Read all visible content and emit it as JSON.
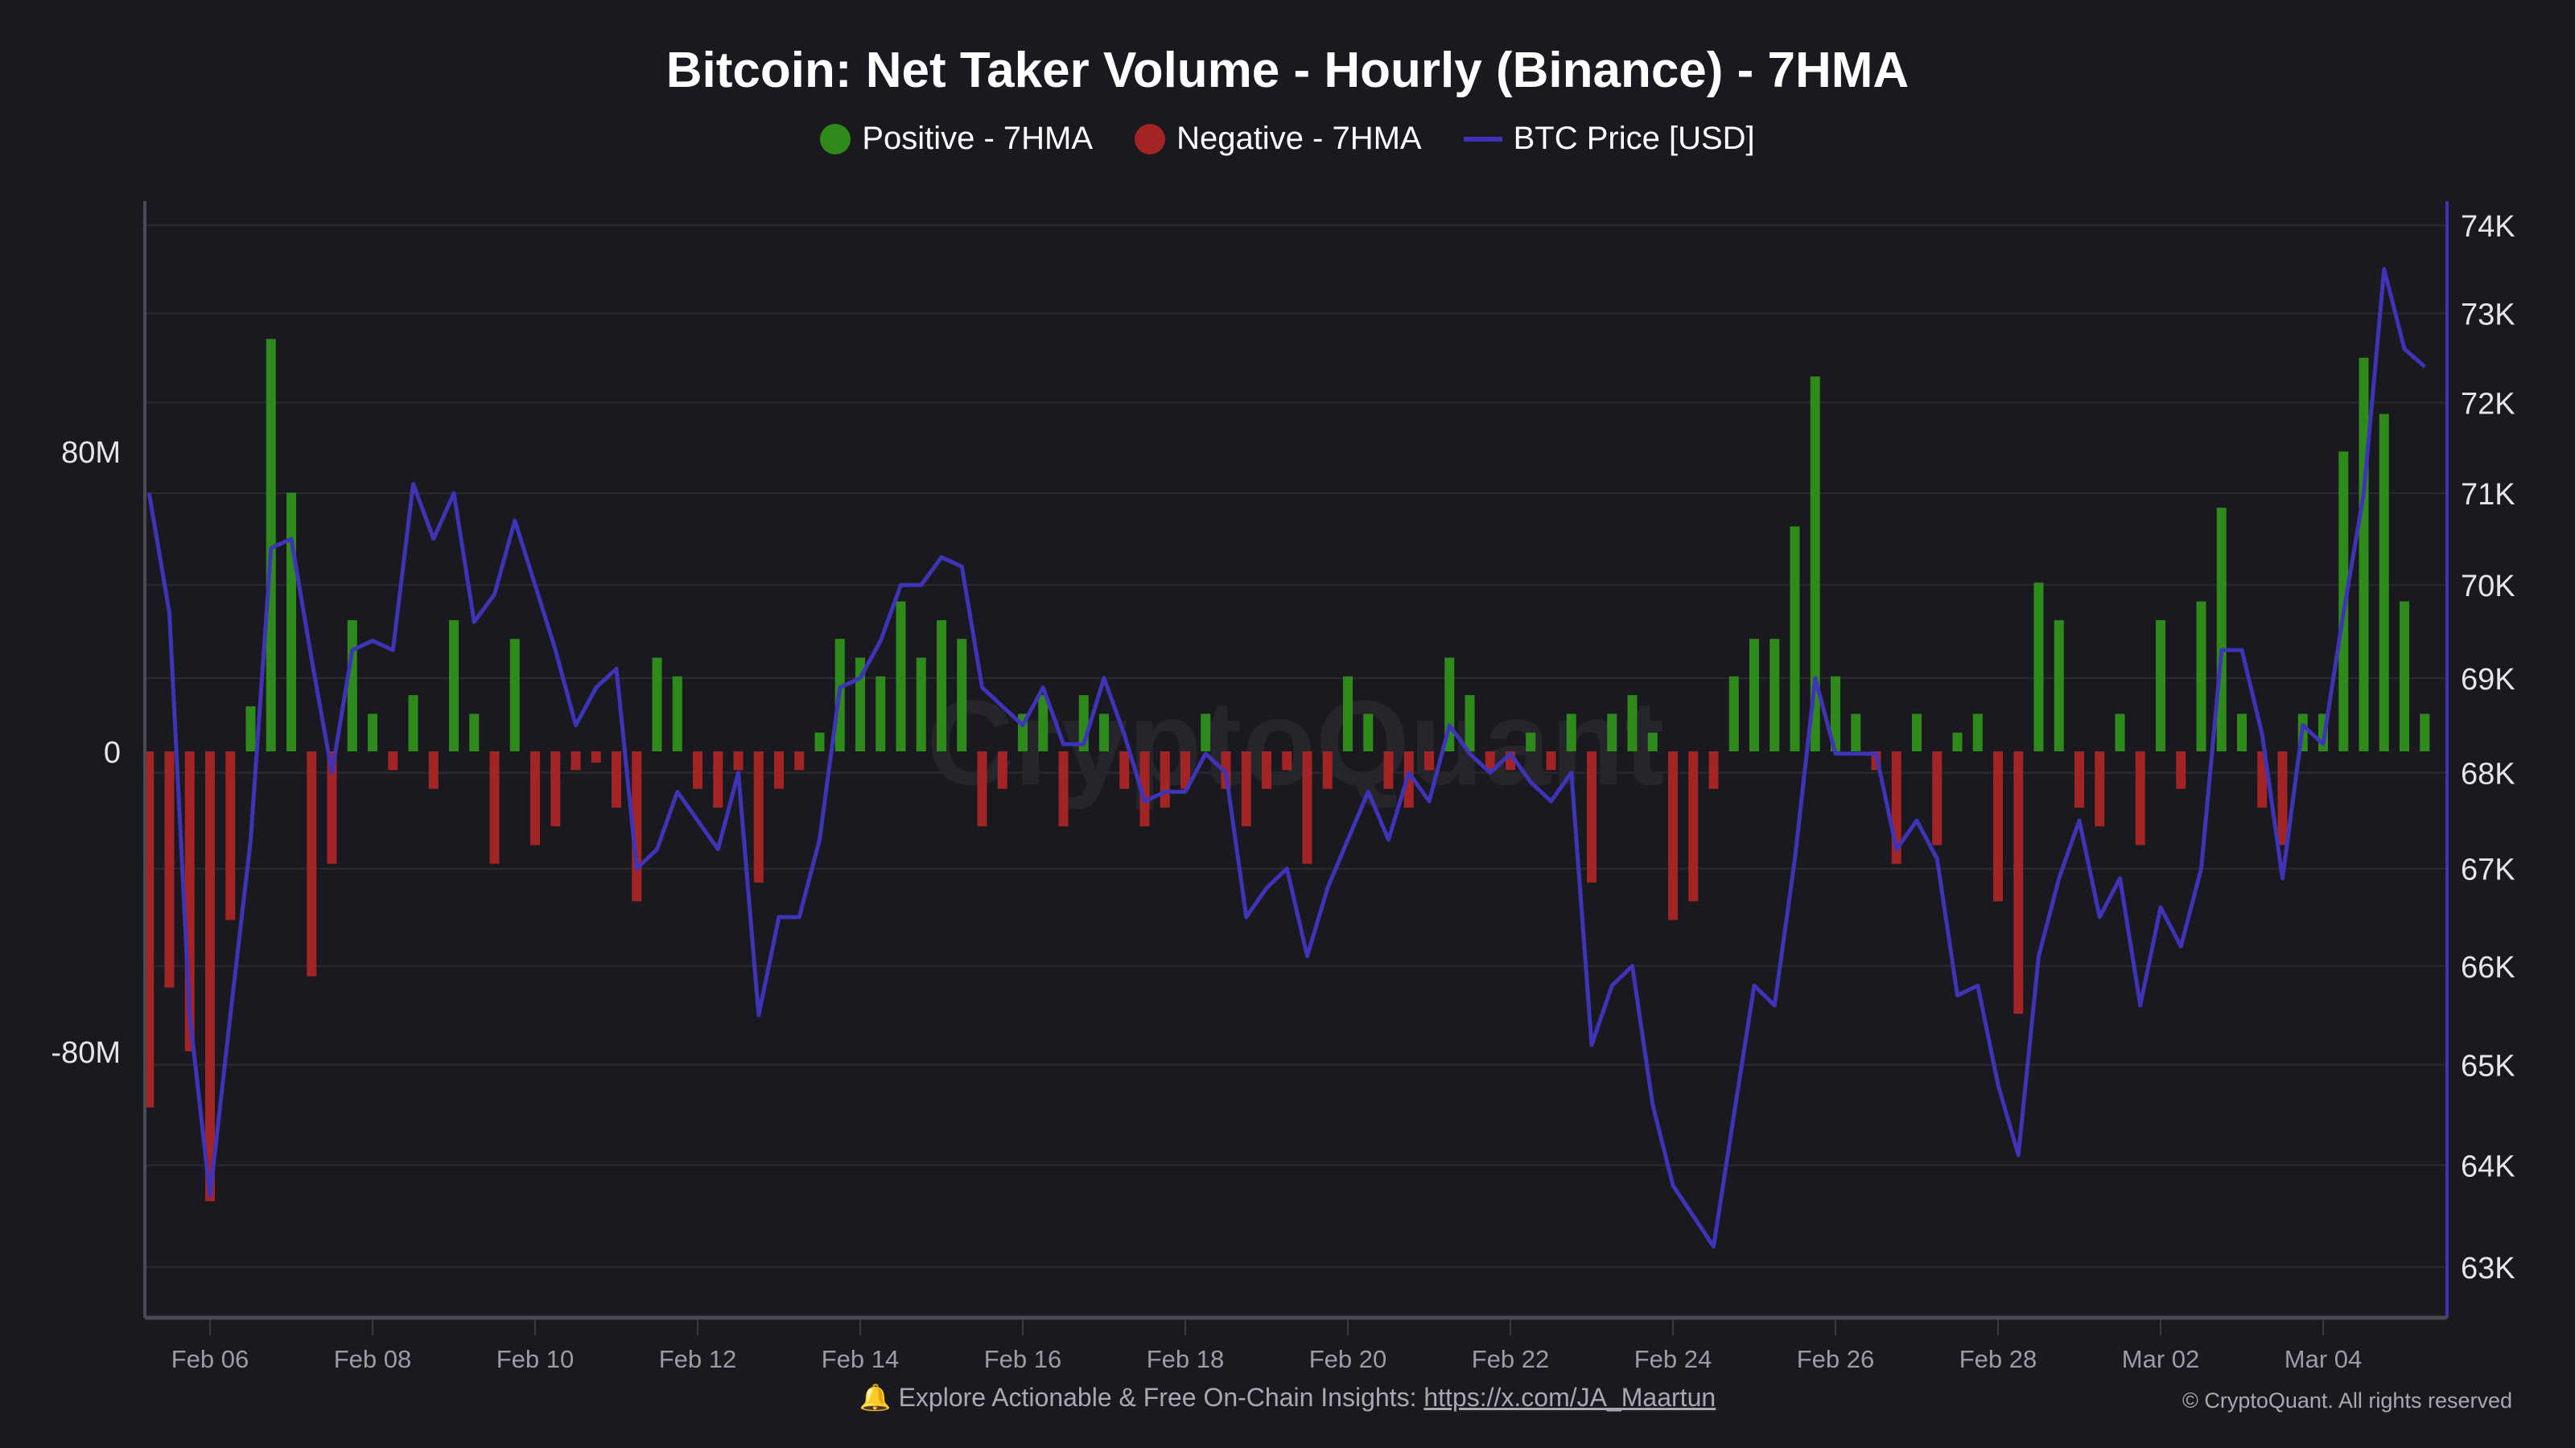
{
  "title": "Bitcoin: Net Taker Volume - Hourly (Binance) - 7HMA",
  "legend": [
    {
      "label": "Positive - 7HMA",
      "color": "#2f8a1c",
      "shape": "dot"
    },
    {
      "label": "Negative - 7HMA",
      "color": "#a32424",
      "shape": "dot"
    },
    {
      "label": "BTC Price [USD]",
      "color": "#3f33b8",
      "shape": "line"
    }
  ],
  "watermark": "CryptoQuant",
  "footer": {
    "icon": "bell-icon",
    "text": "Explore Actionable & Free On-Chain Insights: ",
    "link": "https://x.com/JA_Maartun"
  },
  "copyright": "© CryptoQuant. All rights reserved",
  "chart_data": {
    "type": "bar+line",
    "title": "Bitcoin: Net Taker Volume - Hourly (Binance) - 7HMA",
    "x_ticks": [
      "Feb 06",
      "Feb 08",
      "Feb 10",
      "Feb 12",
      "Feb 14",
      "Feb 16",
      "Feb 18",
      "Feb 20",
      "Feb 22",
      "Feb 24",
      "Feb 26",
      "Feb 28",
      "Mar 02",
      "Mar 04"
    ],
    "left_axis": {
      "ticks": [
        80,
        0,
        -80
      ],
      "tick_labels": [
        "80M",
        "0",
        "-80M"
      ],
      "unit": "M",
      "range": [
        -150,
        150
      ]
    },
    "right_axis": {
      "scale": "log",
      "ticks": [
        63000,
        64000,
        65000,
        66000,
        67000,
        68000,
        69000,
        70000,
        71000,
        72000,
        73000,
        74000
      ],
      "tick_labels": [
        "63K",
        "64K",
        "65K",
        "66K",
        "67K",
        "68K",
        "69K",
        "70K",
        "71K",
        "72K",
        "73K",
        "74K"
      ],
      "range": [
        62500,
        74500
      ]
    },
    "grid": true,
    "legend_position": "top",
    "colors": {
      "positive": "#2f8a1c",
      "negative": "#a32424",
      "price": "#3f33b8"
    },
    "columns": [
      "time",
      "btc_price_usd",
      "net_taker_volume_7hma_musd"
    ],
    "points": [
      [
        "Feb 05 06:00",
        71000,
        -95
      ],
      [
        "Feb 05 12:00",
        69700,
        -63
      ],
      [
        "Feb 05 18:00",
        65500,
        -80
      ],
      [
        "Feb 06 00:00",
        63700,
        -120
      ],
      [
        "Feb 06 06:00",
        65500,
        -45
      ],
      [
        "Feb 06 12:00",
        67300,
        12
      ],
      [
        "Feb 06 18:00",
        70400,
        110
      ],
      [
        "Feb 07 00:00",
        70500,
        69
      ],
      [
        "Feb 07 06:00",
        69200,
        -60
      ],
      [
        "Feb 07 12:00",
        68000,
        -30
      ],
      [
        "Feb 07 18:00",
        69300,
        35
      ],
      [
        "Feb 08 00:00",
        69400,
        10
      ],
      [
        "Feb 08 06:00",
        69300,
        -5
      ],
      [
        "Feb 08 12:00",
        71100,
        15
      ],
      [
        "Feb 08 18:00",
        70500,
        -10
      ],
      [
        "Feb 09 00:00",
        71000,
        35
      ],
      [
        "Feb 09 06:00",
        69600,
        10
      ],
      [
        "Feb 09 12:00",
        69900,
        -30
      ],
      [
        "Feb 09 18:00",
        70700,
        30
      ],
      [
        "Feb 10 00:00",
        70000,
        -25
      ],
      [
        "Feb 10 06:00",
        69300,
        -20
      ],
      [
        "Feb 10 12:00",
        68500,
        -5
      ],
      [
        "Feb 10 18:00",
        68900,
        -3
      ],
      [
        "Feb 11 00:00",
        69100,
        -15
      ],
      [
        "Feb 11 06:00",
        67000,
        -40
      ],
      [
        "Feb 11 12:00",
        67200,
        25
      ],
      [
        "Feb 11 18:00",
        67800,
        20
      ],
      [
        "Feb 12 00:00",
        67500,
        -10
      ],
      [
        "Feb 12 06:00",
        67200,
        -15
      ],
      [
        "Feb 12 12:00",
        68000,
        -5
      ],
      [
        "Feb 12 18:00",
        65500,
        -35
      ],
      [
        "Feb 13 00:00",
        66500,
        -10
      ],
      [
        "Feb 13 06:00",
        66500,
        -5
      ],
      [
        "Feb 13 12:00",
        67300,
        5
      ],
      [
        "Feb 13 18:00",
        68900,
        30
      ],
      [
        "Feb 14 00:00",
        69000,
        25
      ],
      [
        "Feb 14 06:00",
        69400,
        20
      ],
      [
        "Feb 14 12:00",
        70000,
        40
      ],
      [
        "Feb 14 18:00",
        70000,
        25
      ],
      [
        "Feb 15 00:00",
        70300,
        35
      ],
      [
        "Feb 15 06:00",
        70200,
        30
      ],
      [
        "Feb 15 12:00",
        68900,
        -20
      ],
      [
        "Feb 15 18:00",
        68700,
        -10
      ],
      [
        "Feb 16 00:00",
        68500,
        10
      ],
      [
        "Feb 16 06:00",
        68900,
        15
      ],
      [
        "Feb 16 12:00",
        68300,
        -20
      ],
      [
        "Feb 16 18:00",
        68300,
        15
      ],
      [
        "Feb 17 00:00",
        69000,
        10
      ],
      [
        "Feb 17 06:00",
        68400,
        -10
      ],
      [
        "Feb 17 12:00",
        67700,
        -20
      ],
      [
        "Feb 17 18:00",
        67800,
        -15
      ],
      [
        "Feb 18 00:00",
        67800,
        -10
      ],
      [
        "Feb 18 06:00",
        68200,
        10
      ],
      [
        "Feb 18 12:00",
        68000,
        -10
      ],
      [
        "Feb 18 18:00",
        66500,
        -20
      ],
      [
        "Feb 19 00:00",
        66800,
        -10
      ],
      [
        "Feb 19 06:00",
        67000,
        -5
      ],
      [
        "Feb 19 12:00",
        66100,
        -30
      ],
      [
        "Feb 19 18:00",
        66800,
        -10
      ],
      [
        "Feb 20 00:00",
        67300,
        20
      ],
      [
        "Feb 20 06:00",
        67800,
        10
      ],
      [
        "Feb 20 12:00",
        67300,
        -10
      ],
      [
        "Feb 20 18:00",
        68000,
        -15
      ],
      [
        "Feb 21 00:00",
        67700,
        -5
      ],
      [
        "Feb 21 06:00",
        68500,
        25
      ],
      [
        "Feb 21 12:00",
        68200,
        15
      ],
      [
        "Feb 21 18:00",
        68000,
        -5
      ],
      [
        "Feb 22 00:00",
        68200,
        -5
      ],
      [
        "Feb 22 06:00",
        67900,
        5
      ],
      [
        "Feb 22 12:00",
        67700,
        -5
      ],
      [
        "Feb 22 18:00",
        68000,
        10
      ],
      [
        "Feb 23 00:00",
        65200,
        -35
      ],
      [
        "Feb 23 06:00",
        65800,
        10
      ],
      [
        "Feb 23 12:00",
        66000,
        15
      ],
      [
        "Feb 23 18:00",
        64600,
        5
      ],
      [
        "Feb 24 00:00",
        63800,
        -45
      ],
      [
        "Feb 24 06:00",
        63500,
        -40
      ],
      [
        "Feb 24 12:00",
        63200,
        -10
      ],
      [
        "Feb 24 18:00",
        64500,
        20
      ],
      [
        "Feb 25 00:00",
        65800,
        30
      ],
      [
        "Feb 25 06:00",
        65600,
        30
      ],
      [
        "Feb 25 12:00",
        67100,
        60
      ],
      [
        "Feb 25 18:00",
        69000,
        100
      ],
      [
        "Feb 26 00:00",
        68200,
        20
      ],
      [
        "Feb 26 06:00",
        68200,
        10
      ],
      [
        "Feb 26 12:00",
        68200,
        -5
      ],
      [
        "Feb 26 18:00",
        67200,
        -30
      ],
      [
        "Feb 27 00:00",
        67500,
        10
      ],
      [
        "Feb 27 06:00",
        67100,
        -25
      ],
      [
        "Feb 27 12:00",
        65700,
        5
      ],
      [
        "Feb 27 18:00",
        65800,
        10
      ],
      [
        "Feb 28 00:00",
        64800,
        -40
      ],
      [
        "Feb 28 06:00",
        64100,
        -70
      ],
      [
        "Feb 28 12:00",
        66100,
        45
      ],
      [
        "Feb 28 18:00",
        66900,
        35
      ],
      [
        "Mar 01 00:00",
        67500,
        -15
      ],
      [
        "Mar 01 06:00",
        66500,
        -20
      ],
      [
        "Mar 01 12:00",
        66900,
        10
      ],
      [
        "Mar 01 18:00",
        65600,
        -25
      ],
      [
        "Mar 02 00:00",
        66600,
        35
      ],
      [
        "Mar 02 06:00",
        66200,
        -10
      ],
      [
        "Mar 02 12:00",
        67000,
        40
      ],
      [
        "Mar 02 18:00",
        69300,
        65
      ],
      [
        "Mar 03 00:00",
        69300,
        10
      ],
      [
        "Mar 03 06:00",
        68400,
        -15
      ],
      [
        "Mar 03 12:00",
        66900,
        -25
      ],
      [
        "Mar 03 18:00",
        68500,
        10
      ],
      [
        "Mar 04 00:00",
        68300,
        10
      ],
      [
        "Mar 04 06:00",
        69700,
        80
      ],
      [
        "Mar 04 12:00",
        71000,
        105
      ],
      [
        "Mar 04 18:00",
        73500,
        90
      ],
      [
        "Mar 05 00:00",
        72600,
        40
      ],
      [
        "Mar 05 06:00",
        72400,
        10
      ]
    ]
  }
}
